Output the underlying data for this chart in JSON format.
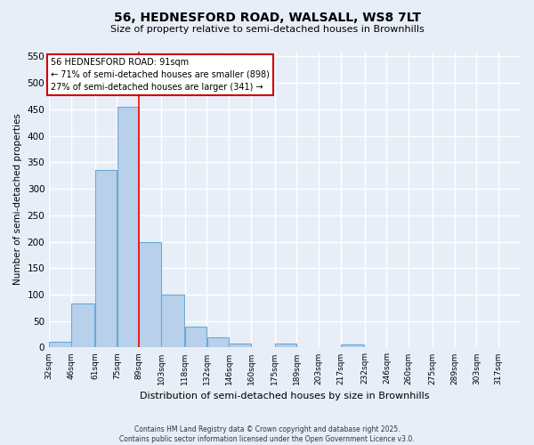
{
  "title_line1": "56, HEDNESFORD ROAD, WALSALL, WS8 7LT",
  "title_line2": "Size of property relative to semi-detached houses in Brownhills",
  "xlabel": "Distribution of semi-detached houses by size in Brownhills",
  "ylabel": "Number of semi-detached properties",
  "bin_labels": [
    "32sqm",
    "46sqm",
    "61sqm",
    "75sqm",
    "89sqm",
    "103sqm",
    "118sqm",
    "132sqm",
    "146sqm",
    "160sqm",
    "175sqm",
    "189sqm",
    "203sqm",
    "217sqm",
    "232sqm",
    "246sqm",
    "260sqm",
    "275sqm",
    "289sqm",
    "303sqm",
    "317sqm"
  ],
  "bin_edges": [
    32,
    46,
    61,
    75,
    89,
    103,
    118,
    132,
    146,
    160,
    175,
    189,
    203,
    217,
    232,
    246,
    260,
    275,
    289,
    303,
    317
  ],
  "bar_heights": [
    10,
    83,
    335,
    455,
    200,
    100,
    40,
    20,
    8,
    0,
    7,
    0,
    0,
    5,
    0,
    0,
    0,
    0,
    0,
    0
  ],
  "bar_color": "#b8d0ea",
  "bar_edge_color": "#6aaad4",
  "red_line_x": 89,
  "annotation_title": "56 HEDNESFORD ROAD: 91sqm",
  "annotation_line1": "← 71% of semi-detached houses are smaller (898)",
  "annotation_line2": "27% of semi-detached houses are larger (341) →",
  "annotation_box_color": "#ffffff",
  "annotation_box_edge_color": "#cc0000",
  "ylim": [
    0,
    560
  ],
  "yticks": [
    0,
    50,
    100,
    150,
    200,
    250,
    300,
    350,
    400,
    450,
    500,
    550
  ],
  "background_color": "#e8eef8",
  "grid_color": "#ffffff",
  "footer_line1": "Contains HM Land Registry data © Crown copyright and database right 2025.",
  "footer_line2": "Contains public sector information licensed under the Open Government Licence v3.0."
}
